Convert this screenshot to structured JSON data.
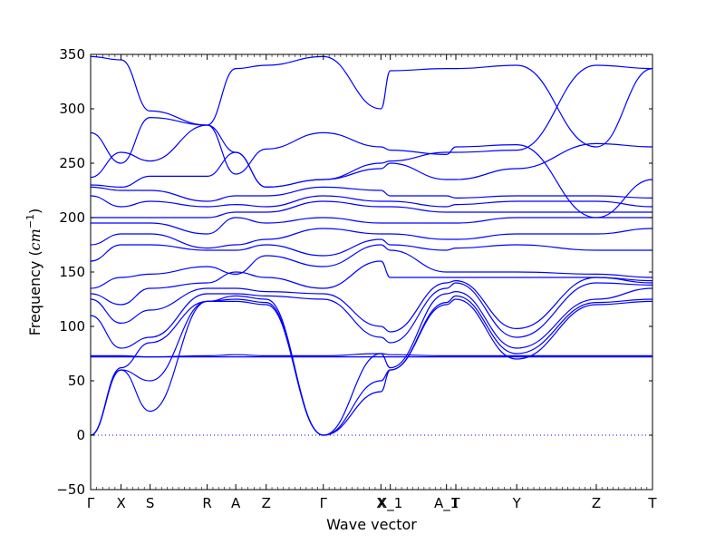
{
  "chart_data": {
    "type": "line",
    "title": "",
    "xlabel": "Wave vector",
    "ylabel": "Frequency (cm⁻¹)",
    "ylabel_unit_base": "cm",
    "ylabel_unit_exp": "−1",
    "ylim": [
      -50,
      350
    ],
    "yticks": [
      -50,
      0,
      50,
      100,
      150,
      200,
      250,
      300,
      350
    ],
    "xlim": [
      0,
      12
    ],
    "kpoints": [
      {
        "label": "Γ",
        "x": 0
      },
      {
        "label": "X",
        "x": 0.65
      },
      {
        "label": "S",
        "x": 1.27
      },
      {
        "label": "R",
        "x": 2.49
      },
      {
        "label": "A",
        "x": 3.1
      },
      {
        "label": "Z",
        "x": 3.75
      },
      {
        "label": "Γ",
        "x": 4.97
      },
      {
        "label": "X",
        "x": 6.2
      },
      {
        "label": "X_1",
        "x": 6.4
      },
      {
        "label": "A_1",
        "x": 7.6
      },
      {
        "label": "T",
        "x": 7.8
      },
      {
        "label": "Y",
        "x": 9.1
      },
      {
        "label": "Z",
        "x": 10.8
      },
      {
        "label": "T",
        "x": 12
      }
    ],
    "zero_line": true,
    "series": [
      {
        "x": [
          0,
          0.65,
          1.27,
          2.49,
          3.1,
          3.75,
          4.97,
          6.2,
          6.4,
          7.6,
          7.8,
          9.1,
          10.8,
          12
        ],
        "values": [
          0,
          60,
          22,
          123,
          123,
          120,
          0,
          40,
          60,
          120,
          125,
          70,
          120,
          123
        ]
      },
      {
        "x": [
          0,
          0.65,
          1.27,
          2.49,
          3.1,
          3.75,
          4.97,
          6.2,
          6.4,
          7.6,
          7.8,
          9.1,
          10.8,
          12
        ],
        "values": [
          0,
          60,
          50,
          123,
          125,
          122,
          0,
          50,
          60,
          122,
          128,
          75,
          122,
          125
        ]
      },
      {
        "x": [
          0,
          0.65,
          1.27,
          2.49,
          3.1,
          3.75,
          4.97,
          6.2,
          6.4,
          7.6,
          7.8,
          9.1,
          10.8,
          12
        ],
        "values": [
          0,
          62,
          85,
          123,
          128,
          125,
          0,
          75,
          62,
          130,
          132,
          80,
          125,
          135
        ]
      },
      {
        "x": [
          0,
          12
        ],
        "values": [
          72,
          72
        ]
      },
      {
        "x": [
          0,
          0.65,
          1.27,
          2.49,
          3.1,
          3.75,
          4.97,
          6.2,
          6.4,
          7.6,
          7.8,
          9.1,
          10.8,
          12
        ],
        "values": [
          73,
          73,
          72,
          73,
          74,
          73,
          73,
          75,
          74,
          73,
          73,
          73,
          73,
          73
        ]
      },
      {
        "x": [
          0,
          0.65,
          1.27,
          2.49,
          3.1,
          3.75,
          4.97,
          6.2,
          6.4,
          7.6,
          7.8,
          9.1,
          10.8,
          12
        ],
        "values": [
          110,
          80,
          90,
          130,
          130,
          128,
          125,
          90,
          85,
          135,
          140,
          90,
          140,
          138
        ]
      },
      {
        "x": [
          0,
          0.65,
          1.27,
          2.49,
          3.1,
          3.75,
          4.97,
          6.2,
          6.4,
          7.6,
          7.8,
          9.1,
          10.8,
          12
        ],
        "values": [
          125,
          103,
          115,
          135,
          135,
          132,
          130,
          100,
          95,
          140,
          142,
          98,
          145,
          140
        ]
      },
      {
        "x": [
          0,
          0.65,
          1.27,
          2.49,
          3.1,
          3.75,
          4.97,
          6.2,
          6.4,
          7.6,
          7.8,
          9.1,
          10.8,
          12
        ],
        "values": [
          130,
          120,
          135,
          140,
          150,
          145,
          135,
          160,
          145,
          145,
          145,
          145,
          145,
          142
        ]
      },
      {
        "x": [
          0,
          0.65,
          1.27,
          2.49,
          3.1,
          3.75,
          4.97,
          6.2,
          6.4,
          7.6,
          7.8,
          9.1,
          10.8,
          12
        ],
        "values": [
          135,
          145,
          148,
          155,
          148,
          165,
          155,
          175,
          170,
          150,
          150,
          150,
          148,
          145
        ]
      },
      {
        "x": [
          0,
          0.65,
          1.27,
          2.49,
          3.1,
          3.75,
          4.97,
          6.2,
          6.4,
          7.6,
          7.8,
          9.1,
          10.8,
          12
        ],
        "values": [
          160,
          175,
          175,
          170,
          170,
          175,
          165,
          180,
          175,
          170,
          172,
          175,
          170,
          170
        ]
      },
      {
        "x": [
          0,
          0.65,
          1.27,
          2.49,
          3.1,
          3.75,
          4.97,
          6.2,
          6.4,
          7.6,
          7.8,
          9.1,
          10.8,
          12
        ],
        "values": [
          175,
          185,
          185,
          172,
          175,
          180,
          190,
          185,
          185,
          180,
          180,
          185,
          185,
          190
        ]
      },
      {
        "x": [
          0,
          0.65,
          1.27,
          2.49,
          3.1,
          3.75,
          4.97,
          6.2,
          6.4,
          7.6,
          7.8,
          9.1,
          10.8,
          12
        ],
        "values": [
          195,
          195,
          195,
          185,
          200,
          195,
          200,
          195,
          195,
          195,
          195,
          200,
          200,
          200
        ]
      },
      {
        "x": [
          0,
          0.65,
          1.27,
          2.49,
          3.1,
          3.75,
          4.97,
          6.2,
          6.4,
          7.6,
          7.8,
          9.1,
          10.8,
          12
        ],
        "values": [
          200,
          200,
          200,
          200,
          205,
          205,
          215,
          210,
          210,
          205,
          205,
          205,
          205,
          205
        ]
      },
      {
        "x": [
          0,
          0.65,
          1.27,
          2.49,
          3.1,
          3.75,
          4.97,
          6.2,
          6.4,
          7.6,
          7.8,
          9.1,
          10.8,
          12
        ],
        "values": [
          220,
          210,
          215,
          210,
          212,
          210,
          220,
          215,
          215,
          210,
          212,
          215,
          215,
          210
        ]
      },
      {
        "x": [
          0,
          0.65,
          1.27,
          2.49,
          3.1,
          3.75,
          4.97,
          6.2,
          6.4,
          7.6,
          7.8,
          9.1,
          10.8,
          12
        ],
        "values": [
          228,
          225,
          225,
          215,
          220,
          220,
          228,
          225,
          220,
          220,
          218,
          220,
          220,
          218
        ]
      },
      {
        "x": [
          0,
          0.65,
          1.27,
          2.49,
          3.1,
          3.75,
          4.97,
          6.2,
          6.4,
          7.6,
          7.8,
          9.1,
          10.8,
          12
        ],
        "values": [
          230,
          228,
          238,
          238,
          260,
          228,
          235,
          245,
          250,
          235,
          235,
          245,
          268,
          265
        ]
      },
      {
        "x": [
          0,
          0.65,
          1.27,
          2.49,
          3.1,
          3.75,
          4.97,
          6.2,
          6.4,
          7.6,
          7.8,
          9.1,
          10.8,
          12
        ],
        "values": [
          237,
          260,
          252,
          285,
          240,
          263,
          278,
          265,
          262,
          258,
          265,
          267,
          200,
          235
        ]
      },
      {
        "x": [
          0,
          0.65,
          1.27,
          2.49,
          3.1,
          3.75,
          4.97,
          6.2,
          6.4,
          7.6,
          7.8,
          9.1,
          10.8,
          12
        ],
        "values": [
          278,
          250,
          292,
          285,
          337,
          340,
          348,
          300,
          335,
          337,
          337,
          340,
          265,
          337
        ]
      },
      {
        "x": [
          0,
          0.65,
          1.27,
          2.49,
          3.1,
          3.75,
          4.97,
          6.2,
          6.4,
          7.6,
          7.8,
          9.1,
          10.8,
          12
        ],
        "values": [
          348,
          345,
          298,
          285,
          260,
          228,
          235,
          250,
          252,
          260,
          260,
          262,
          340,
          337
        ]
      }
    ]
  }
}
